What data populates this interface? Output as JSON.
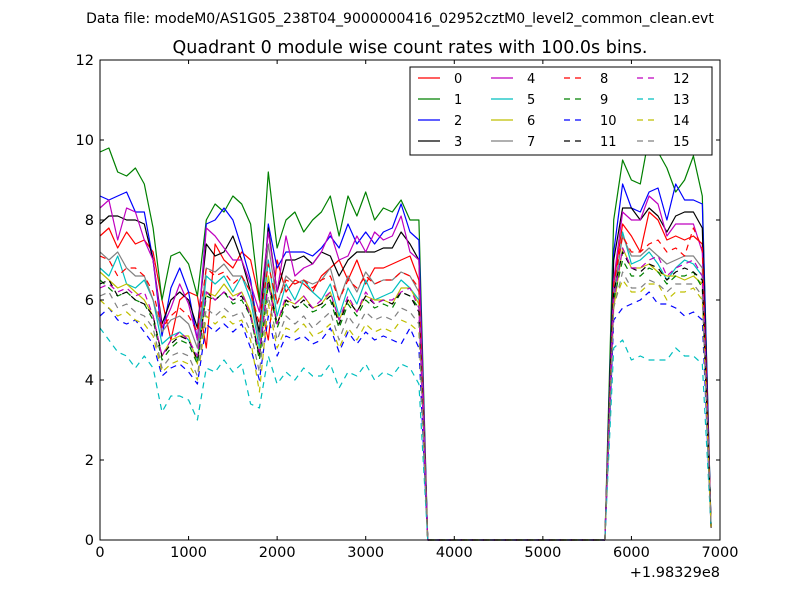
{
  "figure": {
    "suptitle": "Data file: modeM0/AS1G05_238T04_9000000416_02952cztM0_level2_common_clean.evt"
  },
  "chart_data": {
    "type": "line",
    "title": "Quadrant 0 module wise count rates with 100.0s bins.",
    "xlabel": "",
    "ylabel": "",
    "x_offset_label": "+1.98329e8",
    "xlim": [
      0,
      7000
    ],
    "ylim": [
      0,
      12
    ],
    "xticks": [
      0,
      1000,
      2000,
      3000,
      4000,
      5000,
      6000,
      7000
    ],
    "yticks": [
      0,
      2,
      4,
      6,
      8,
      10,
      12
    ],
    "grid": false,
    "legend_position": "top-right",
    "legend_columns": 4,
    "x": [
      0,
      100,
      200,
      300,
      400,
      500,
      600,
      700,
      800,
      900,
      1000,
      1100,
      1200,
      1300,
      1400,
      1500,
      1600,
      1700,
      1800,
      1900,
      2000,
      2100,
      2200,
      2300,
      2400,
      2500,
      2600,
      2700,
      2800,
      2900,
      3000,
      3100,
      3200,
      3300,
      3400,
      3500,
      3600,
      3700,
      3800,
      3900,
      4000,
      4100,
      4200,
      4300,
      4400,
      4500,
      4600,
      4700,
      4800,
      4900,
      5000,
      5100,
      5200,
      5300,
      5400,
      5500,
      5600,
      5700,
      5800,
      5900,
      6000,
      6100,
      6200,
      6300,
      6400,
      6500,
      6600,
      6700,
      6800,
      6900
    ],
    "series": [
      {
        "name": "0",
        "color": "#ff0000",
        "dash": "solid",
        "values": [
          7.6,
          7.8,
          7.3,
          7.7,
          7.4,
          7.5,
          7.2,
          6.0,
          5.0,
          6.0,
          6.2,
          6.1,
          4.8,
          7.4,
          7.0,
          6.8,
          7.2,
          7.0,
          6.0,
          5.0,
          7.0,
          6.2,
          6.5,
          6.4,
          6.2,
          6.6,
          6.8,
          7.0,
          6.5,
          7.0,
          6.4,
          6.8,
          6.8,
          6.9,
          7.0,
          7.1,
          6.5,
          0,
          0,
          0,
          0,
          0,
          0,
          0,
          0,
          0,
          0,
          0,
          0,
          0,
          0,
          0,
          0,
          0,
          0,
          0,
          0,
          0,
          6.4,
          7.9,
          7.6,
          7.2,
          8.2,
          8.0,
          7.5,
          7.6,
          7.5,
          7.6,
          7.4,
          0.3
        ]
      },
      {
        "name": "1",
        "color": "#008000",
        "dash": "solid",
        "values": [
          9.7,
          9.8,
          9.2,
          9.1,
          9.3,
          8.9,
          7.8,
          6.0,
          7.1,
          7.2,
          6.9,
          6.1,
          8.0,
          8.4,
          8.2,
          8.6,
          8.4,
          7.9,
          6.0,
          9.2,
          7.3,
          8.0,
          8.2,
          7.7,
          8.0,
          8.2,
          8.6,
          7.6,
          8.6,
          8.1,
          8.7,
          8.0,
          8.3,
          8.2,
          8.5,
          8.0,
          8.0,
          0,
          0,
          0,
          0,
          0,
          0,
          0,
          0,
          0,
          0,
          0,
          0,
          0,
          0,
          0,
          0,
          0,
          0,
          0,
          0,
          0,
          8.0,
          9.5,
          9.0,
          8.9,
          10.1,
          9.7,
          9.3,
          8.7,
          9.0,
          9.6,
          8.6,
          0.3
        ]
      },
      {
        "name": "2",
        "color": "#0000ff",
        "dash": "solid",
        "values": [
          8.6,
          8.5,
          8.6,
          8.7,
          8.2,
          8.2,
          7.0,
          5.1,
          6.3,
          6.8,
          6.2,
          5.0,
          7.9,
          8.0,
          8.3,
          8.0,
          7.3,
          6.5,
          5.0,
          7.9,
          6.8,
          7.2,
          7.2,
          7.2,
          7.1,
          7.3,
          7.6,
          7.3,
          7.9,
          7.4,
          7.7,
          7.4,
          7.7,
          7.8,
          8.4,
          7.7,
          7.5,
          0,
          0,
          0,
          0,
          0,
          0,
          0,
          0,
          0,
          0,
          0,
          0,
          0,
          0,
          0,
          0,
          0,
          0,
          0,
          0,
          0,
          7.2,
          8.9,
          8.3,
          8.2,
          8.7,
          8.8,
          8.0,
          8.9,
          8.5,
          8.5,
          8.4,
          0.3
        ]
      },
      {
        "name": "3",
        "color": "#000000",
        "dash": "solid",
        "values": [
          7.9,
          8.1,
          8.1,
          8.0,
          8.0,
          7.9,
          7.0,
          5.4,
          6.0,
          6.2,
          6.0,
          5.3,
          7.4,
          7.1,
          7.2,
          7.6,
          7.0,
          6.2,
          5.2,
          7.8,
          6.2,
          7.0,
          7.0,
          7.1,
          6.9,
          7.2,
          7.1,
          6.6,
          7.0,
          7.2,
          7.2,
          7.2,
          7.3,
          7.3,
          7.7,
          7.4,
          7.0,
          0,
          0,
          0,
          0,
          0,
          0,
          0,
          0,
          0,
          0,
          0,
          0,
          0,
          0,
          0,
          0,
          0,
          0,
          0,
          0,
          0,
          7.0,
          8.3,
          8.3,
          8.0,
          8.3,
          8.1,
          7.7,
          8.1,
          8.2,
          8.2,
          7.8,
          0.3
        ]
      },
      {
        "name": "4",
        "color": "#bf00bf",
        "dash": "solid",
        "values": [
          8.3,
          8.5,
          7.5,
          8.3,
          8.2,
          7.5,
          7.0,
          5.3,
          5.8,
          6.4,
          5.9,
          5.0,
          7.8,
          7.6,
          7.3,
          7.0,
          7.0,
          6.4,
          5.7,
          7.7,
          6.2,
          7.6,
          6.6,
          6.8,
          6.9,
          7.2,
          7.7,
          7.0,
          7.1,
          7.6,
          7.2,
          7.7,
          7.5,
          7.6,
          8.1,
          7.2,
          7.0,
          0,
          0,
          0,
          0,
          0,
          0,
          0,
          0,
          0,
          0,
          0,
          0,
          0,
          0,
          0,
          0,
          0,
          0,
          0,
          0,
          0,
          6.5,
          8.2,
          8.0,
          8.0,
          8.6,
          8.4,
          7.6,
          7.9,
          7.9,
          7.9,
          7.2,
          0.3
        ]
      },
      {
        "name": "5",
        "color": "#00bfbf",
        "dash": "solid",
        "values": [
          6.8,
          6.6,
          7.1,
          6.4,
          6.3,
          6.5,
          6.0,
          4.9,
          5.1,
          5.2,
          5.0,
          4.5,
          6.6,
          6.4,
          6.6,
          6.2,
          6.6,
          6.0,
          4.8,
          7.0,
          5.6,
          6.4,
          6.0,
          6.5,
          6.2,
          6.0,
          6.4,
          5.6,
          6.3,
          5.9,
          6.5,
          6.0,
          6.1,
          6.2,
          6.5,
          6.3,
          6.0,
          0,
          0,
          0,
          0,
          0,
          0,
          0,
          0,
          0,
          0,
          0,
          0,
          0,
          0,
          0,
          0,
          0,
          0,
          0,
          0,
          0,
          6.0,
          7.7,
          6.9,
          7.0,
          7.2,
          6.9,
          6.5,
          6.8,
          7.0,
          6.9,
          6.6,
          0.3
        ]
      },
      {
        "name": "6",
        "color": "#bfbf00",
        "dash": "solid",
        "values": [
          6.7,
          6.5,
          6.3,
          6.4,
          6.2,
          6.0,
          5.6,
          4.6,
          5.0,
          5.1,
          5.1,
          4.4,
          6.2,
          6.1,
          6.4,
          6.1,
          6.2,
          5.7,
          4.6,
          6.6,
          5.4,
          6.0,
          5.9,
          6.1,
          5.8,
          5.9,
          6.2,
          5.5,
          6.0,
          5.7,
          6.1,
          6.0,
          6.0,
          5.9,
          6.3,
          6.3,
          5.9,
          0,
          0,
          0,
          0,
          0,
          0,
          0,
          0,
          0,
          0,
          0,
          0,
          0,
          0,
          0,
          0,
          0,
          0,
          0,
          0,
          0,
          5.8,
          7.3,
          6.8,
          6.8,
          6.9,
          6.7,
          6.6,
          6.6,
          6.5,
          6.6,
          6.4,
          0.3
        ]
      },
      {
        "name": "7",
        "color": "#808080",
        "dash": "solid",
        "values": [
          7.2,
          7.0,
          7.2,
          6.8,
          6.6,
          6.6,
          6.0,
          5.2,
          5.5,
          5.6,
          5.4,
          4.8,
          6.8,
          6.7,
          6.9,
          6.6,
          6.6,
          6.2,
          5.0,
          7.4,
          5.9,
          6.6,
          6.4,
          6.5,
          6.4,
          6.5,
          6.8,
          6.0,
          6.6,
          6.2,
          6.7,
          6.4,
          6.5,
          6.5,
          6.7,
          6.6,
          6.2,
          0,
          0,
          0,
          0,
          0,
          0,
          0,
          0,
          0,
          0,
          0,
          0,
          0,
          0,
          0,
          0,
          0,
          0,
          0,
          0,
          0,
          6.2,
          7.6,
          7.1,
          7.1,
          7.3,
          7.1,
          6.9,
          7.0,
          7.1,
          7.1,
          6.8,
          0.3
        ]
      },
      {
        "name": "8",
        "color": "#ff0000",
        "dash": "dashed",
        "values": [
          7.1,
          7.0,
          6.6,
          6.8,
          6.8,
          6.6,
          6.2,
          5.3,
          5.6,
          5.8,
          5.6,
          5.2,
          6.8,
          6.6,
          6.7,
          6.4,
          6.6,
          6.2,
          5.4,
          6.9,
          5.9,
          6.5,
          6.4,
          6.5,
          6.3,
          6.5,
          6.6,
          6.0,
          6.5,
          6.3,
          6.6,
          6.4,
          6.5,
          6.5,
          6.7,
          6.6,
          6.3,
          0,
          0,
          0,
          0,
          0,
          0,
          0,
          0,
          0,
          0,
          0,
          0,
          0,
          0,
          0,
          0,
          0,
          0,
          0,
          0,
          0,
          6.4,
          7.6,
          7.2,
          7.2,
          7.4,
          7.5,
          7.2,
          7.3,
          7.1,
          7.8,
          7.3,
          0.3
        ]
      },
      {
        "name": "9",
        "color": "#008000",
        "dash": "dashed",
        "values": [
          6.5,
          6.3,
          6.1,
          6.2,
          6.0,
          5.9,
          5.5,
          4.5,
          4.8,
          5.0,
          4.9,
          4.4,
          6.1,
          6.0,
          6.2,
          5.9,
          6.0,
          5.6,
          4.5,
          6.4,
          5.3,
          5.9,
          5.8,
          5.9,
          5.7,
          5.8,
          6.0,
          5.3,
          5.9,
          5.6,
          6.0,
          5.8,
          5.9,
          5.8,
          6.2,
          6.1,
          5.8,
          0,
          0,
          0,
          0,
          0,
          0,
          0,
          0,
          0,
          0,
          0,
          0,
          0,
          0,
          0,
          0,
          0,
          0,
          0,
          0,
          0,
          6.0,
          7.0,
          6.6,
          6.6,
          6.8,
          6.7,
          6.4,
          6.6,
          6.6,
          6.7,
          6.3,
          0.3
        ]
      },
      {
        "name": "10",
        "color": "#0000ff",
        "dash": "dashed",
        "values": [
          5.6,
          5.8,
          5.5,
          5.4,
          5.5,
          5.2,
          4.9,
          4.1,
          4.3,
          4.4,
          4.2,
          3.9,
          5.4,
          5.2,
          5.4,
          5.2,
          5.4,
          4.8,
          4.0,
          5.6,
          4.6,
          5.1,
          5.0,
          5.1,
          4.9,
          5.0,
          5.3,
          4.7,
          5.2,
          4.9,
          5.2,
          5.0,
          5.1,
          5.0,
          4.9,
          5.3,
          4.8,
          0,
          0,
          0,
          0,
          0,
          0,
          0,
          0,
          0,
          0,
          0,
          0,
          0,
          0,
          0,
          0,
          0,
          0,
          0,
          0,
          0,
          5.5,
          5.8,
          5.9,
          6.0,
          6.2,
          5.9,
          5.9,
          5.8,
          5.6,
          5.7,
          5.5,
          0.3
        ]
      },
      {
        "name": "11",
        "color": "#000000",
        "dash": "dashed",
        "values": [
          6.4,
          6.5,
          6.1,
          6.2,
          6.0,
          5.9,
          5.6,
          4.6,
          4.9,
          5.1,
          5.0,
          4.5,
          6.2,
          6.0,
          6.2,
          6.0,
          6.1,
          5.6,
          4.6,
          6.5,
          5.4,
          6.0,
          5.8,
          6.0,
          5.8,
          5.9,
          6.1,
          5.4,
          6.0,
          5.7,
          6.1,
          5.9,
          6.0,
          5.9,
          6.2,
          6.1,
          5.7,
          0,
          0,
          0,
          0,
          0,
          0,
          0,
          0,
          0,
          0,
          0,
          0,
          0,
          0,
          0,
          0,
          0,
          0,
          0,
          0,
          0,
          6.2,
          7.2,
          6.8,
          6.7,
          6.9,
          6.8,
          6.5,
          6.7,
          6.8,
          6.7,
          6.5,
          0.3
        ]
      },
      {
        "name": "12",
        "color": "#bf00bf",
        "dash": "dashed",
        "values": [
          6.3,
          6.4,
          6.2,
          6.3,
          6.1,
          6.2,
          5.6,
          4.6,
          5.0,
          5.2,
          5.0,
          4.6,
          6.2,
          6.0,
          6.2,
          6.0,
          6.2,
          5.6,
          4.7,
          6.4,
          5.4,
          6.1,
          5.9,
          6.1,
          5.8,
          6.0,
          6.2,
          5.5,
          6.1,
          5.7,
          6.2,
          5.9,
          6.0,
          6.0,
          6.2,
          6.3,
          5.8,
          0,
          0,
          0,
          0,
          0,
          0,
          0,
          0,
          0,
          0,
          0,
          0,
          0,
          0,
          0,
          0,
          0,
          0,
          0,
          0,
          0,
          6.0,
          7.3,
          6.8,
          6.8,
          7.0,
          7.1,
          6.6,
          6.8,
          6.9,
          7.0,
          6.6,
          0.3
        ]
      },
      {
        "name": "13",
        "color": "#00bfbf",
        "dash": "dashed",
        "values": [
          5.3,
          5.0,
          4.7,
          4.6,
          4.3,
          4.6,
          4.3,
          3.2,
          3.6,
          3.6,
          3.5,
          3.0,
          4.3,
          4.2,
          4.5,
          4.2,
          4.4,
          3.4,
          3.3,
          4.6,
          3.9,
          4.2,
          4.0,
          4.3,
          4.1,
          4.1,
          4.4,
          3.8,
          4.2,
          4.1,
          4.4,
          4.0,
          4.2,
          4.1,
          4.4,
          4.3,
          3.9,
          0,
          0,
          0,
          0,
          0,
          0,
          0,
          0,
          0,
          0,
          0,
          0,
          0,
          0,
          0,
          0,
          0,
          0,
          0,
          0,
          0,
          4.8,
          5.0,
          4.5,
          4.6,
          4.5,
          4.5,
          4.5,
          4.8,
          4.6,
          4.6,
          4.4,
          0.3
        ]
      },
      {
        "name": "14",
        "color": "#bfbf00",
        "dash": "dashed",
        "values": [
          6.0,
          5.8,
          5.6,
          5.7,
          5.5,
          5.4,
          5.1,
          4.2,
          4.4,
          4.5,
          4.4,
          4.0,
          5.6,
          5.4,
          5.6,
          5.4,
          5.5,
          5.0,
          3.7,
          5.9,
          4.8,
          5.3,
          5.2,
          5.4,
          5.1,
          5.2,
          5.4,
          4.8,
          5.3,
          5.0,
          5.4,
          5.2,
          5.3,
          5.2,
          5.5,
          5.4,
          5.2,
          0,
          0,
          0,
          0,
          0,
          0,
          0,
          0,
          0,
          0,
          0,
          0,
          0,
          0,
          0,
          0,
          0,
          0,
          0,
          0,
          0,
          5.9,
          6.5,
          6.2,
          6.2,
          6.4,
          6.4,
          6.0,
          6.2,
          6.2,
          6.3,
          6.0,
          0.3
        ]
      },
      {
        "name": "15",
        "color": "#808080",
        "dash": "dashed",
        "values": [
          6.1,
          6.2,
          5.8,
          5.9,
          5.7,
          5.6,
          5.3,
          4.3,
          4.6,
          4.7,
          4.6,
          4.1,
          5.8,
          5.6,
          5.8,
          5.6,
          5.7,
          5.2,
          4.2,
          6.1,
          5.0,
          5.6,
          5.4,
          5.6,
          5.3,
          5.5,
          5.7,
          5.0,
          5.6,
          5.3,
          5.7,
          5.5,
          5.6,
          5.5,
          5.8,
          5.7,
          5.4,
          0,
          0,
          0,
          0,
          0,
          0,
          0,
          0,
          0,
          0,
          0,
          0,
          0,
          0,
          0,
          0,
          0,
          0,
          0,
          0,
          0,
          5.8,
          6.7,
          6.3,
          6.3,
          6.5,
          6.4,
          6.2,
          6.4,
          6.4,
          6.4,
          6.1,
          0.3
        ]
      }
    ]
  }
}
